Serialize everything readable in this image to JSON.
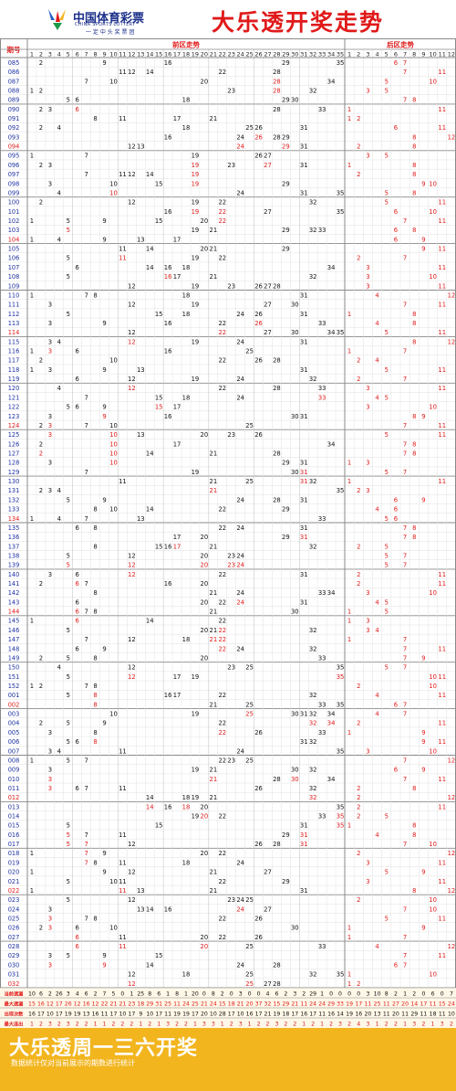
{
  "header": {
    "logo_cn": "中国体育彩票",
    "logo_en": "CHINA SPORTS LOTTERY",
    "logo_slogan": "一 定 中 头 奖 票 团",
    "title": "大乐透开奖走势"
  },
  "table": {
    "period_label": "期号",
    "front_label": "前区走势",
    "back_label": "后区走势"
  },
  "colors": {
    "red": "#e01a1a",
    "blue": "#1c2fa0",
    "border": "#8a8a8a",
    "grid": "#e2e2e2",
    "accent": "#f2b51e"
  },
  "draws": [
    {
      "period": "085",
      "front": [
        2,
        9,
        16,
        29,
        35
      ],
      "back": [
        6,
        7
      ]
    },
    {
      "period": "086",
      "front": [
        11,
        12,
        14,
        22,
        28
      ],
      "back": [
        7,
        11
      ]
    },
    {
      "period": "087",
      "front": [
        7,
        10,
        20,
        28,
        34
      ],
      "back": [
        5,
        10
      ]
    },
    {
      "period": "088",
      "front": [
        1,
        2,
        23,
        28,
        32
      ],
      "back": [
        3,
        5
      ]
    },
    {
      "period": "089",
      "front": [
        5,
        6,
        18,
        29,
        30
      ],
      "back": [
        7,
        8
      ]
    },
    {
      "period": "090",
      "front": [
        2,
        3,
        6,
        28,
        33
      ],
      "back": [
        1,
        11
      ]
    },
    {
      "period": "091",
      "front": [
        8,
        11,
        17,
        21
      ],
      "back": [
        1,
        2
      ]
    },
    {
      "period": "092",
      "front": [
        2,
        4,
        18,
        25,
        26,
        31
      ],
      "back": [
        6,
        11
      ]
    },
    {
      "period": "093",
      "front": [
        16,
        24,
        26,
        28,
        29
      ],
      "back": [
        8,
        12
      ]
    },
    {
      "period": "094",
      "front": [
        12,
        13,
        24,
        29,
        31
      ],
      "back": [
        2,
        8
      ]
    },
    {
      "period": "095",
      "front": [
        1,
        7,
        19,
        26,
        27
      ],
      "back": [
        3,
        5
      ]
    },
    {
      "period": "096",
      "front": [
        2,
        3,
        19,
        23,
        27,
        31
      ],
      "back": [
        1,
        8
      ]
    },
    {
      "period": "097",
      "front": [
        7,
        11,
        12,
        14,
        19
      ],
      "back": [
        2,
        8
      ]
    },
    {
      "period": "098",
      "front": [
        3,
        10,
        15,
        19,
        29
      ],
      "back": [
        9,
        10
      ]
    },
    {
      "period": "099",
      "front": [
        4,
        10,
        24,
        31,
        35
      ],
      "back": [
        5,
        8
      ]
    },
    {
      "period": "100",
      "front": [
        2,
        12,
        19,
        22,
        32
      ],
      "back": [
        5,
        11
      ]
    },
    {
      "period": "101",
      "front": [
        16,
        19,
        22,
        27,
        35
      ],
      "back": [
        6,
        10
      ]
    },
    {
      "period": "102",
      "front": [
        1,
        5,
        9,
        15,
        20,
        22
      ],
      "back": [
        7,
        11
      ]
    },
    {
      "period": "103",
      "front": [
        5,
        19,
        21,
        29,
        32,
        33
      ],
      "back": [
        6,
        8
      ]
    },
    {
      "period": "104",
      "front": [
        1,
        4,
        9,
        13,
        17
      ],
      "back": [
        6,
        9
      ]
    },
    {
      "period": "105",
      "front": [
        11,
        14,
        20,
        21,
        29
      ],
      "back": [
        9,
        11
      ]
    },
    {
      "period": "106",
      "front": [
        5,
        11,
        19,
        22
      ],
      "back": [
        2,
        7
      ]
    },
    {
      "period": "107",
      "front": [
        6,
        14,
        16,
        18,
        34
      ],
      "back": [
        3,
        11
      ]
    },
    {
      "period": "108",
      "front": [
        5,
        16,
        17,
        21,
        32
      ],
      "back": [
        3,
        10
      ]
    },
    {
      "period": "109",
      "front": [
        12,
        19,
        23,
        26,
        27,
        28
      ],
      "back": [
        3,
        11
      ]
    },
    {
      "period": "110",
      "front": [
        1,
        7,
        8,
        18,
        31
      ],
      "back": [
        4,
        12
      ]
    },
    {
      "period": "111",
      "front": [
        3,
        12,
        19,
        27,
        30
      ],
      "back": [
        7,
        11
      ]
    },
    {
      "period": "112",
      "front": [
        5,
        15,
        18,
        24,
        26,
        31
      ],
      "back": [
        1,
        8
      ]
    },
    {
      "period": "113",
      "front": [
        3,
        9,
        16,
        22,
        26,
        33
      ],
      "back": [
        4,
        8
      ]
    },
    {
      "period": "114",
      "front": [
        12,
        22,
        27,
        30,
        34,
        35
      ],
      "back": [
        5,
        11
      ]
    },
    {
      "period": "115",
      "front": [
        3,
        4,
        12,
        19,
        24,
        31
      ],
      "back": [
        8,
        12
      ]
    },
    {
      "period": "116",
      "front": [
        1,
        3,
        6,
        16,
        25
      ],
      "back": [
        1,
        7
      ]
    },
    {
      "period": "117",
      "front": [
        2,
        10,
        22,
        26,
        28
      ],
      "back": [
        2,
        4
      ]
    },
    {
      "period": "118",
      "front": [
        1,
        3,
        9,
        13,
        31
      ],
      "back": [
        5,
        11
      ]
    },
    {
      "period": "119",
      "front": [
        6,
        12,
        19,
        24,
        32
      ],
      "back": [
        2,
        7
      ]
    },
    {
      "period": "120",
      "front": [
        4,
        12,
        22,
        28,
        33
      ],
      "back": [
        3,
        11
      ]
    },
    {
      "period": "121",
      "front": [
        7,
        15,
        18,
        24,
        33
      ],
      "back": [
        4,
        5
      ]
    },
    {
      "period": "122",
      "front": [
        5,
        6,
        9,
        15,
        17
      ],
      "back": [
        3,
        10
      ]
    },
    {
      "period": "123",
      "front": [
        3,
        9,
        16,
        30,
        31
      ],
      "back": [
        8,
        9
      ]
    },
    {
      "period": "124",
      "front": [
        2,
        3,
        7,
        10,
        25
      ],
      "back": [
        7,
        11
      ]
    },
    {
      "period": "125",
      "front": [
        3,
        10,
        13,
        20,
        23,
        26
      ],
      "back": [
        5,
        11
      ]
    },
    {
      "period": "126",
      "front": [
        2,
        10,
        17,
        34
      ],
      "back": [
        7,
        8
      ]
    },
    {
      "period": "127",
      "front": [
        2,
        10,
        14,
        21,
        28
      ],
      "back": [
        7,
        8
      ]
    },
    {
      "period": "128",
      "front": [
        3,
        10,
        29,
        31
      ],
      "back": [
        1,
        3
      ]
    },
    {
      "period": "129",
      "front": [
        7,
        19,
        30,
        31
      ],
      "back": [
        5,
        7
      ]
    },
    {
      "period": "130",
      "front": [
        11,
        21,
        25,
        31,
        32
      ],
      "back": [
        1,
        11
      ]
    },
    {
      "period": "131",
      "front": [
        2,
        3,
        4,
        21,
        35
      ],
      "back": [
        2,
        3
      ]
    },
    {
      "period": "132",
      "front": [
        5,
        9,
        24,
        28,
        31
      ],
      "back": [
        6,
        9
      ]
    },
    {
      "period": "133",
      "front": [
        8,
        10,
        14,
        22,
        29
      ],
      "back": [
        4,
        6
      ]
    },
    {
      "period": "134",
      "front": [
        1,
        4,
        7,
        13,
        33
      ],
      "back": [
        5,
        6
      ]
    },
    {
      "period": "135",
      "front": [
        6,
        8,
        22,
        24,
        31
      ],
      "back": [
        7,
        8
      ]
    },
    {
      "period": "136",
      "front": [
        17,
        20,
        29,
        31
      ],
      "back": [
        7,
        8
      ]
    },
    {
      "period": "137",
      "front": [
        8,
        15,
        16,
        17,
        21,
        32
      ],
      "back": [
        2,
        5
      ]
    },
    {
      "period": "138",
      "front": [
        5,
        12,
        20,
        23,
        24
      ],
      "back": [
        5,
        7
      ]
    },
    {
      "period": "139",
      "front": [
        5,
        12,
        20,
        23,
        24
      ],
      "back": [
        5,
        7
      ]
    },
    {
      "period": "140",
      "front": [
        3,
        6,
        12,
        22,
        31
      ],
      "back": [
        2,
        11
      ]
    },
    {
      "period": "141",
      "front": [
        2,
        6,
        7,
        16,
        20
      ],
      "back": [
        2,
        11
      ]
    },
    {
      "period": "142",
      "front": [
        8,
        21,
        24,
        33,
        34
      ],
      "back": [
        3,
        10
      ]
    },
    {
      "period": "143",
      "front": [
        6,
        20,
        22,
        24,
        31
      ],
      "back": [
        4,
        5
      ]
    },
    {
      "period": "144",
      "front": [
        6,
        7,
        8,
        21,
        30
      ],
      "back": [
        1,
        5
      ]
    },
    {
      "period": "145",
      "front": [
        1,
        6,
        14,
        22
      ],
      "back": [
        1,
        3
      ]
    },
    {
      "period": "146",
      "front": [
        5,
        20,
        21,
        22,
        32
      ],
      "back": [
        3,
        4
      ]
    },
    {
      "period": "147",
      "front": [
        7,
        12,
        18,
        21,
        22
      ],
      "back": [
        1,
        7
      ]
    },
    {
      "period": "148",
      "front": [
        6,
        9,
        22,
        24,
        32
      ],
      "back": [
        7,
        11
      ]
    },
    {
      "period": "149",
      "front": [
        2,
        5,
        8,
        20,
        33
      ],
      "back": [
        7,
        9
      ]
    },
    {
      "period": "150",
      "front": [
        4,
        12,
        23,
        25,
        35
      ],
      "back": [
        5,
        7
      ]
    },
    {
      "period": "151",
      "front": [
        5,
        12,
        17,
        19,
        35
      ],
      "back": [
        10,
        11
      ]
    },
    {
      "period": "152",
      "front": [
        1,
        2,
        7,
        8
      ],
      "back": [
        2,
        10
      ]
    },
    {
      "period": "001",
      "front": [
        5,
        8,
        16,
        17,
        22,
        32
      ],
      "back": [
        4,
        11
      ]
    },
    {
      "period": "002",
      "front": [
        8,
        21,
        25,
        33,
        35
      ],
      "back": [
        6,
        7
      ]
    },
    {
      "period": "003",
      "front": [
        10,
        19,
        25,
        30,
        31,
        32,
        34
      ],
      "back": [
        4,
        7
      ]
    },
    {
      "period": "004",
      "front": [
        2,
        5,
        9,
        22,
        32,
        34
      ],
      "back": [
        2,
        11
      ]
    },
    {
      "period": "005",
      "front": [
        3,
        8,
        22,
        26,
        33
      ],
      "back": [
        1,
        9
      ]
    },
    {
      "period": "006",
      "front": [
        5,
        6,
        8,
        31,
        32
      ],
      "back": [
        9,
        11
      ]
    },
    {
      "period": "007",
      "front": [
        3,
        4,
        11,
        24,
        35
      ],
      "back": [
        3,
        10
      ]
    },
    {
      "period": "008",
      "front": [
        1,
        5,
        7,
        22,
        23,
        25
      ],
      "back": [
        7,
        12
      ]
    },
    {
      "period": "009",
      "front": [
        3,
        19,
        21,
        30,
        32
      ],
      "back": [
        6,
        9
      ]
    },
    {
      "period": "010",
      "front": [
        3,
        21,
        28,
        30,
        34
      ],
      "back": [
        7,
        11
      ]
    },
    {
      "period": "011",
      "front": [
        3,
        6,
        7,
        11,
        26,
        32
      ],
      "back": [
        2,
        8
      ]
    },
    {
      "period": "012",
      "front": [
        14,
        18,
        19,
        21,
        32
      ],
      "back": [
        2,
        12
      ]
    },
    {
      "period": "013",
      "front": [
        14,
        16,
        18,
        20,
        35
      ],
      "back": [
        2,
        11
      ]
    },
    {
      "period": "014",
      "front": [
        19,
        20,
        22,
        33,
        35
      ],
      "back": [
        2,
        5
      ]
    },
    {
      "period": "015",
      "front": [
        5,
        15,
        31,
        35
      ],
      "back": [
        1,
        8
      ]
    },
    {
      "period": "016",
      "front": [
        5,
        7,
        11,
        29,
        31
      ],
      "back": [
        4,
        8
      ]
    },
    {
      "period": "017",
      "front": [
        5,
        7,
        12,
        26,
        28,
        31
      ],
      "back": [
        7,
        10
      ]
    },
    {
      "period": "018",
      "front": [
        1,
        7,
        9,
        20,
        22
      ],
      "back": [
        2,
        12
      ]
    },
    {
      "period": "019",
      "front": [
        7,
        8,
        11,
        18,
        24
      ],
      "back": [
        3,
        11
      ]
    },
    {
      "period": "020",
      "front": [
        1,
        9,
        12,
        21,
        27
      ],
      "back": [
        5,
        9
      ]
    },
    {
      "period": "021",
      "front": [
        5,
        10,
        11,
        22,
        29
      ],
      "back": [
        3,
        11
      ]
    },
    {
      "period": "022",
      "front": [
        1,
        11,
        13,
        21,
        31
      ],
      "back": [
        8,
        12
      ]
    },
    {
      "period": "023",
      "front": [
        5,
        12,
        23,
        24,
        25
      ],
      "back": [
        2,
        10
      ]
    },
    {
      "period": "024",
      "front": [
        3,
        13,
        14,
        16,
        24,
        27
      ],
      "back": [
        7,
        10
      ]
    },
    {
      "period": "025",
      "front": [
        3,
        7,
        8,
        22,
        26
      ],
      "back": [
        5,
        11
      ]
    },
    {
      "period": "026",
      "front": [
        2,
        3,
        6,
        10,
        30
      ],
      "back": [
        1,
        9
      ]
    },
    {
      "period": "027",
      "front": [
        6,
        11,
        20,
        22,
        26
      ],
      "back": [
        1,
        7
      ]
    },
    {
      "period": "028",
      "front": [
        6,
        11,
        20,
        25,
        33
      ],
      "back": [
        4,
        12
      ]
    },
    {
      "period": "029",
      "front": [
        3,
        5,
        9,
        15
      ],
      "back": [
        7,
        11
      ]
    },
    {
      "period": "030",
      "front": [
        3,
        9,
        14,
        24,
        28
      ],
      "back": [
        6,
        7
      ]
    },
    {
      "period": "031",
      "front": [
        12,
        18,
        25,
        32,
        35
      ],
      "back": [
        1,
        10
      ]
    },
    {
      "period": "032",
      "front": [
        12,
        25,
        27,
        28
      ],
      "back": [
        1,
        2
      ]
    }
  ],
  "stats": [
    {
      "label": "当前遗漏",
      "front": [
        10,
        6,
        2,
        26,
        3,
        4,
        6,
        2,
        7,
        5,
        0,
        1,
        25,
        8,
        6,
        1,
        8,
        1,
        20,
        0,
        8,
        2,
        0,
        3,
        0,
        0,
        4,
        6,
        2,
        3,
        2,
        29,
        1,
        0,
        0
      ],
      "back": [
        0,
        0,
        3,
        10,
        8,
        2,
        1,
        2,
        0,
        6,
        0,
        7
      ]
    },
    {
      "label": "最大遗漏",
      "front": [
        15,
        16,
        12,
        17,
        26,
        12,
        16,
        12,
        22,
        21,
        21,
        23,
        18,
        29,
        31,
        25,
        11,
        24,
        25,
        21,
        24,
        15,
        18,
        21,
        20,
        37,
        32,
        15,
        29,
        21,
        11,
        24,
        24,
        29,
        33
      ],
      "back": [
        19,
        17,
        11,
        25,
        11,
        27,
        20,
        14,
        17,
        11,
        15,
        24
      ]
    },
    {
      "label": "出现次数",
      "front": [
        16,
        17,
        10,
        17,
        19,
        19,
        13,
        16,
        11,
        17,
        10,
        17,
        9,
        10,
        17,
        11,
        19,
        19,
        17,
        20,
        10,
        28,
        17,
        10,
        16,
        17,
        21,
        19,
        18,
        17,
        16,
        17,
        11,
        16,
        14
      ],
      "back": [
        19,
        16,
        20,
        13,
        11,
        20,
        11,
        29,
        11,
        18,
        11,
        10
      ]
    },
    {
      "label": "最大连出",
      "front": [
        1,
        2,
        3,
        2,
        3,
        2,
        2,
        1,
        1,
        2,
        2,
        2,
        1,
        2,
        1,
        3,
        2,
        2,
        1,
        3,
        3,
        1,
        2,
        3,
        1,
        2,
        2,
        3,
        2,
        2,
        1,
        2,
        1,
        2,
        3
      ],
      "back": [
        2,
        4,
        3,
        1,
        2,
        2,
        1,
        3,
        2,
        1,
        3,
        2
      ]
    }
  ],
  "footer": {
    "title": "大乐透周一三六开奖",
    "subtitle": "数据统计仅对当前展示的期数进行统计"
  }
}
